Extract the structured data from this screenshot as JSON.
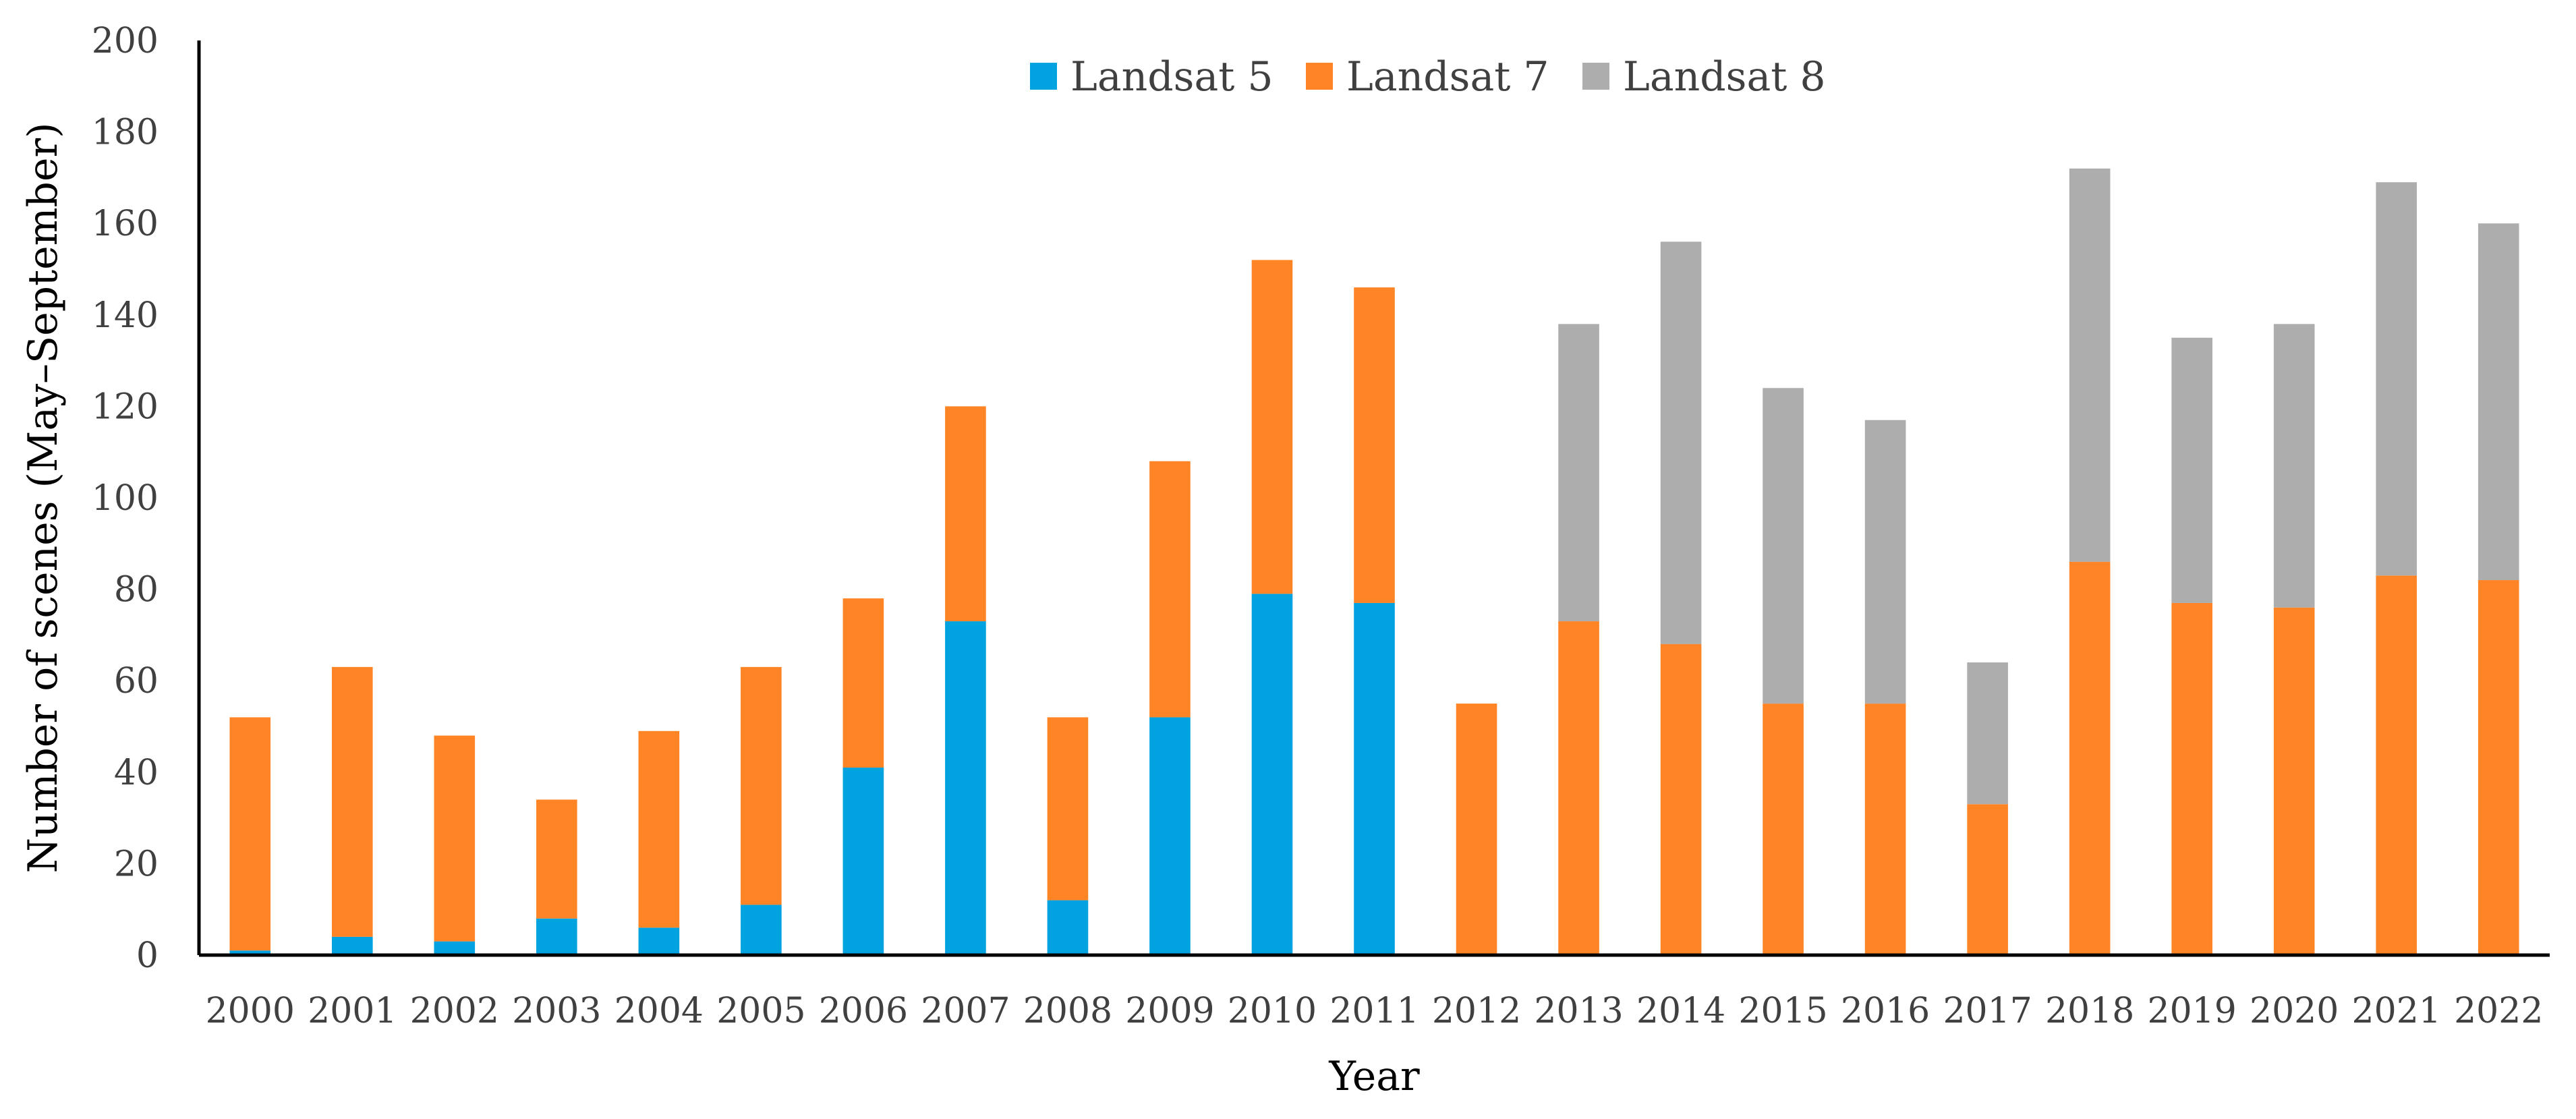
{
  "chart_data": {
    "type": "bar",
    "stacked": true,
    "title": "",
    "xlabel": "Year",
    "ylabel": "Number of scenes (May–September)",
    "ylim": [
      0,
      200
    ],
    "yticks": [
      0,
      20,
      40,
      60,
      80,
      100,
      120,
      140,
      160,
      180,
      200
    ],
    "grid": false,
    "legend_position": "top-center",
    "categories": [
      "2000",
      "2001",
      "2002",
      "2003",
      "2004",
      "2005",
      "2006",
      "2007",
      "2008",
      "2009",
      "2010",
      "2011",
      "2012",
      "2013",
      "2014",
      "2015",
      "2016",
      "2017",
      "2018",
      "2019",
      "2020",
      "2021",
      "2022"
    ],
    "series": [
      {
        "name": "Landsat 5",
        "color": "#00A2E0",
        "values": [
          1,
          4,
          3,
          8,
          6,
          11,
          41,
          73,
          12,
          52,
          79,
          77,
          0,
          0,
          0,
          0,
          0,
          0,
          0,
          0,
          0,
          0,
          0
        ]
      },
      {
        "name": "Landsat 7",
        "color": "#FF8426",
        "values": [
          51,
          59,
          45,
          26,
          43,
          52,
          37,
          47,
          40,
          56,
          73,
          69,
          55,
          73,
          68,
          55,
          55,
          33,
          86,
          77,
          76,
          83,
          82
        ]
      },
      {
        "name": "Landsat 8",
        "color": "#ADADAD",
        "values": [
          0,
          0,
          0,
          0,
          0,
          0,
          0,
          0,
          0,
          0,
          0,
          0,
          0,
          65,
          88,
          69,
          62,
          31,
          86,
          58,
          62,
          86,
          78
        ]
      }
    ]
  }
}
